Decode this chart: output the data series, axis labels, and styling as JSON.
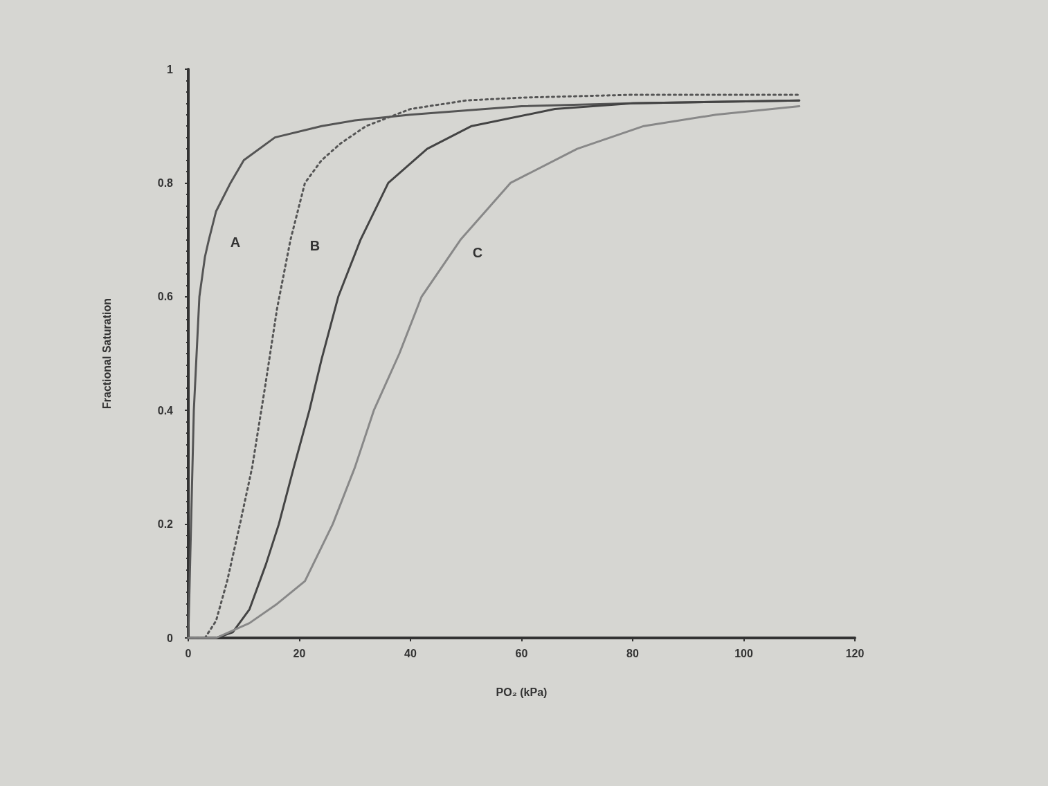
{
  "chart_data": {
    "type": "line",
    "xlabel": "PO₂ (kPa)",
    "ylabel": "Fractional Saturation",
    "xlim": [
      0,
      120
    ],
    "xticks": [
      0,
      20,
      40,
      60,
      80,
      100,
      120
    ],
    "ylim": [
      0,
      1
    ],
    "yticks": [
      0,
      0.2,
      0.4,
      0.6,
      0.8,
      1
    ],
    "grid": false,
    "marker": "none",
    "series": [
      {
        "color": "#555555",
        "line_style": "solid",
        "x": [
          0,
          0.5,
          1,
          2,
          3,
          3.7,
          5,
          7.6,
          10,
          15.6,
          24,
          30,
          40,
          60,
          80,
          110
        ],
        "values": [
          0,
          0.2,
          0.4,
          0.6,
          0.67,
          0.7,
          0.75,
          0.8,
          0.84,
          0.88,
          0.9,
          0.91,
          0.92,
          0.935,
          0.94,
          0.945
        ]
      },
      {
        "color": "#555555",
        "line_style": "dotted",
        "x": [
          0,
          3,
          5,
          7,
          9.3,
          11.5,
          13.8,
          16,
          18.4,
          21,
          24,
          27.5,
          32,
          40,
          50,
          60,
          80,
          110
        ],
        "values": [
          0,
          0,
          0.03,
          0.1,
          0.2,
          0.3,
          0.44,
          0.58,
          0.7,
          0.8,
          0.84,
          0.87,
          0.9,
          0.93,
          0.945,
          0.95,
          0.955,
          0.955
        ]
      },
      {
        "color": "#444444",
        "line_style": "solid",
        "x": [
          0,
          5,
          8,
          11,
          14,
          16.3,
          19,
          21.8,
          24,
          27,
          31,
          36,
          43,
          51,
          66,
          80,
          110
        ],
        "values": [
          0,
          0,
          0.01,
          0.05,
          0.13,
          0.2,
          0.3,
          0.4,
          0.49,
          0.6,
          0.7,
          0.8,
          0.86,
          0.9,
          0.93,
          0.94,
          0.945
        ]
      },
      {
        "color": "#888888",
        "line_style": "solid",
        "x": [
          0,
          5,
          11,
          16,
          21,
          26,
          30,
          33.4,
          38,
          42,
          49,
          58,
          70,
          82,
          95,
          110
        ],
        "values": [
          0,
          0,
          0.026,
          0.06,
          0.1,
          0.2,
          0.3,
          0.4,
          0.5,
          0.6,
          0.7,
          0.8,
          0.86,
          0.9,
          0.92,
          0.935
        ]
      }
    ],
    "annotations": [
      "A",
      "B",
      "C"
    ]
  }
}
